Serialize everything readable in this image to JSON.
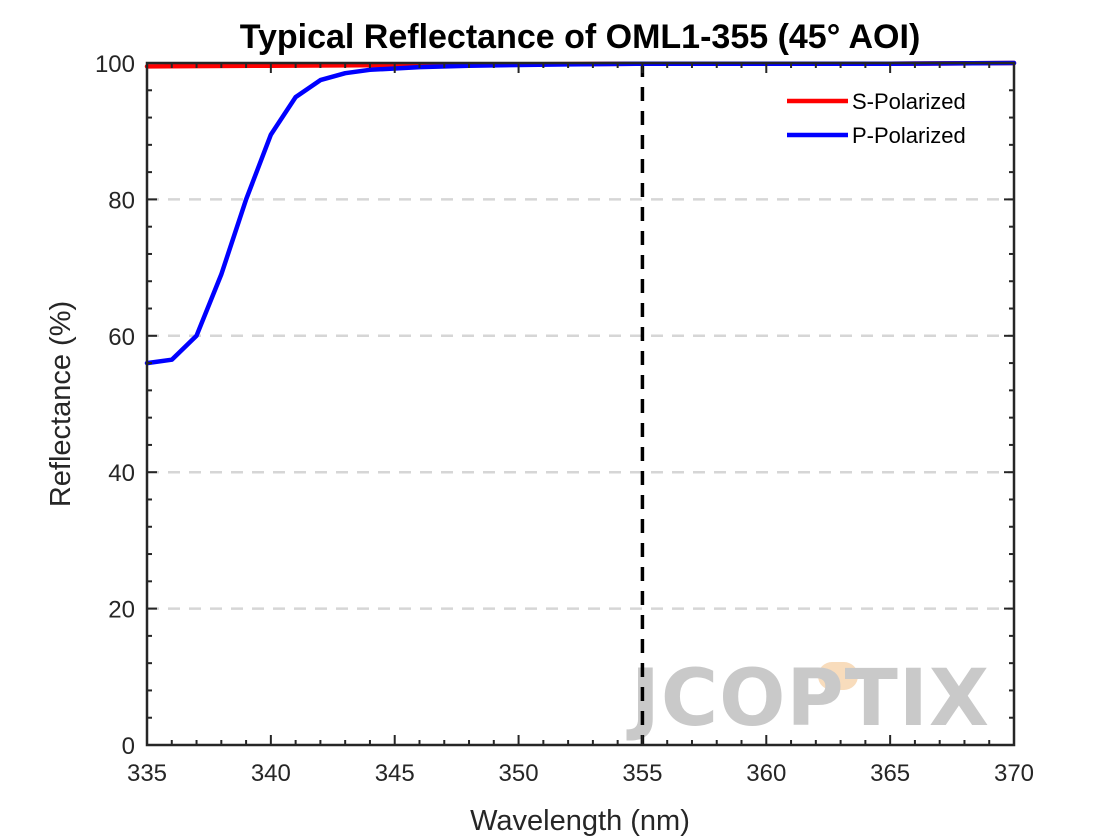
{
  "chart_data": {
    "type": "line",
    "title": "Typical Reflectance of OML1-355 (45° AOI)",
    "xlabel": "Wavelength (nm)",
    "ylabel": "Reflectance (%)",
    "xlim": [
      335,
      370
    ],
    "ylim": [
      0,
      100
    ],
    "xticks": [
      335,
      340,
      345,
      350,
      355,
      360,
      365,
      370
    ],
    "yticks": [
      0,
      20,
      40,
      60,
      80,
      100
    ],
    "grid": "horizontal dashed",
    "legend_position": "top-right",
    "reference_line": {
      "x": 355,
      "style": "dashed",
      "color": "#000000"
    },
    "series": [
      {
        "name": "S-Polarized",
        "color": "#ff0000",
        "x": [
          335,
          340,
          345,
          350,
          355,
          360,
          365,
          370
        ],
        "y": [
          99.5,
          99.6,
          99.7,
          99.8,
          99.9,
          99.9,
          99.9,
          100
        ]
      },
      {
        "name": "P-Polarized",
        "color": "#0000ff",
        "x": [
          335,
          336,
          337,
          338,
          339,
          340,
          341,
          342,
          343,
          344,
          345,
          346,
          348,
          350,
          352,
          355,
          360,
          365,
          370
        ],
        "y": [
          56,
          56.5,
          60,
          69,
          80,
          89.5,
          95,
          97.5,
          98.5,
          99,
          99.2,
          99.4,
          99.6,
          99.7,
          99.8,
          99.9,
          99.9,
          99.9,
          100
        ]
      }
    ]
  },
  "watermark": {
    "text": "JCOPTIX",
    "color": "#c9c9c9",
    "accent": "#f8dcbc"
  }
}
